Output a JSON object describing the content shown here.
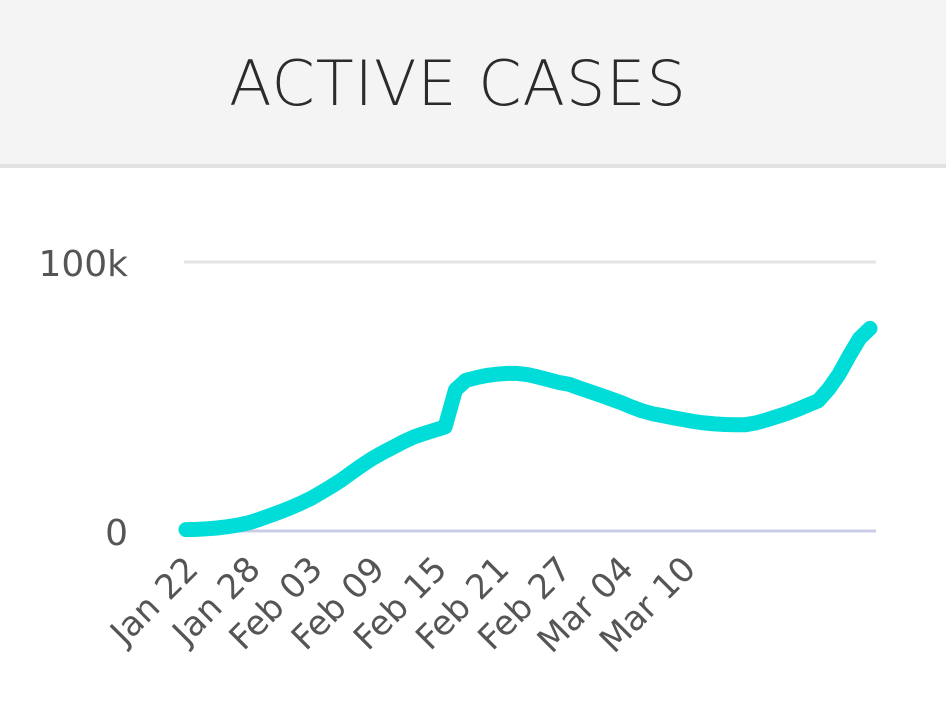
{
  "header": {
    "title": "ACTIVE CASES"
  },
  "colors": {
    "line": "#00dcd8",
    "grid": "#e4e4e4",
    "baseline": "#c9cde6",
    "tick_text": "#555555"
  },
  "chart_data": {
    "type": "line",
    "title": "ACTIVE CASES",
    "xlabel": "",
    "ylabel": "",
    "ylim": [
      0,
      100000
    ],
    "yticks": [
      {
        "value": 0,
        "label": "0"
      },
      {
        "value": 100000,
        "label": "100k"
      }
    ],
    "xticks": [
      "Jan 22",
      "Jan 28",
      "Feb 03",
      "Feb 09",
      "Feb 15",
      "Feb 21",
      "Feb 27",
      "Mar 04",
      "Mar 10"
    ],
    "series": [
      {
        "name": "Active cases",
        "values": [
          510,
          600,
          800,
          1100,
          1600,
          2200,
          3000,
          4200,
          5600,
          7000,
          8500,
          10200,
          12000,
          14200,
          16500,
          19000,
          21800,
          24500,
          27000,
          29200,
          31200,
          33200,
          35000,
          36300,
          37500,
          38700,
          52500,
          56000,
          57000,
          57800,
          58300,
          58600,
          58600,
          58100,
          57200,
          56200,
          55200,
          54500,
          53100,
          51800,
          50500,
          49100,
          47700,
          46100,
          44700,
          43600,
          42900,
          42100,
          41400,
          40700,
          40200,
          39800,
          39600,
          39500,
          39500,
          40200,
          41300,
          42500,
          43700,
          45200,
          46800,
          48400,
          52700,
          58200,
          65200,
          71600,
          75300
        ]
      }
    ]
  }
}
